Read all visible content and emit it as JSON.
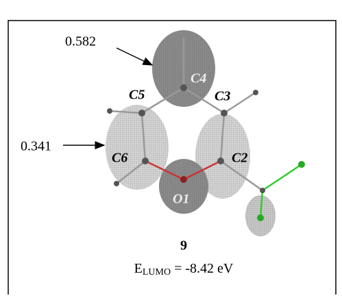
{
  "annotations": [
    "0.582",
    "0.341"
  ],
  "atoms": [
    "C4",
    "C5",
    "C3",
    "C6",
    "C2",
    "O1"
  ],
  "compound": "9",
  "energy": {
    "symbol": "E",
    "subscript": "LUMO",
    "text": "= -8.42 eV"
  }
}
